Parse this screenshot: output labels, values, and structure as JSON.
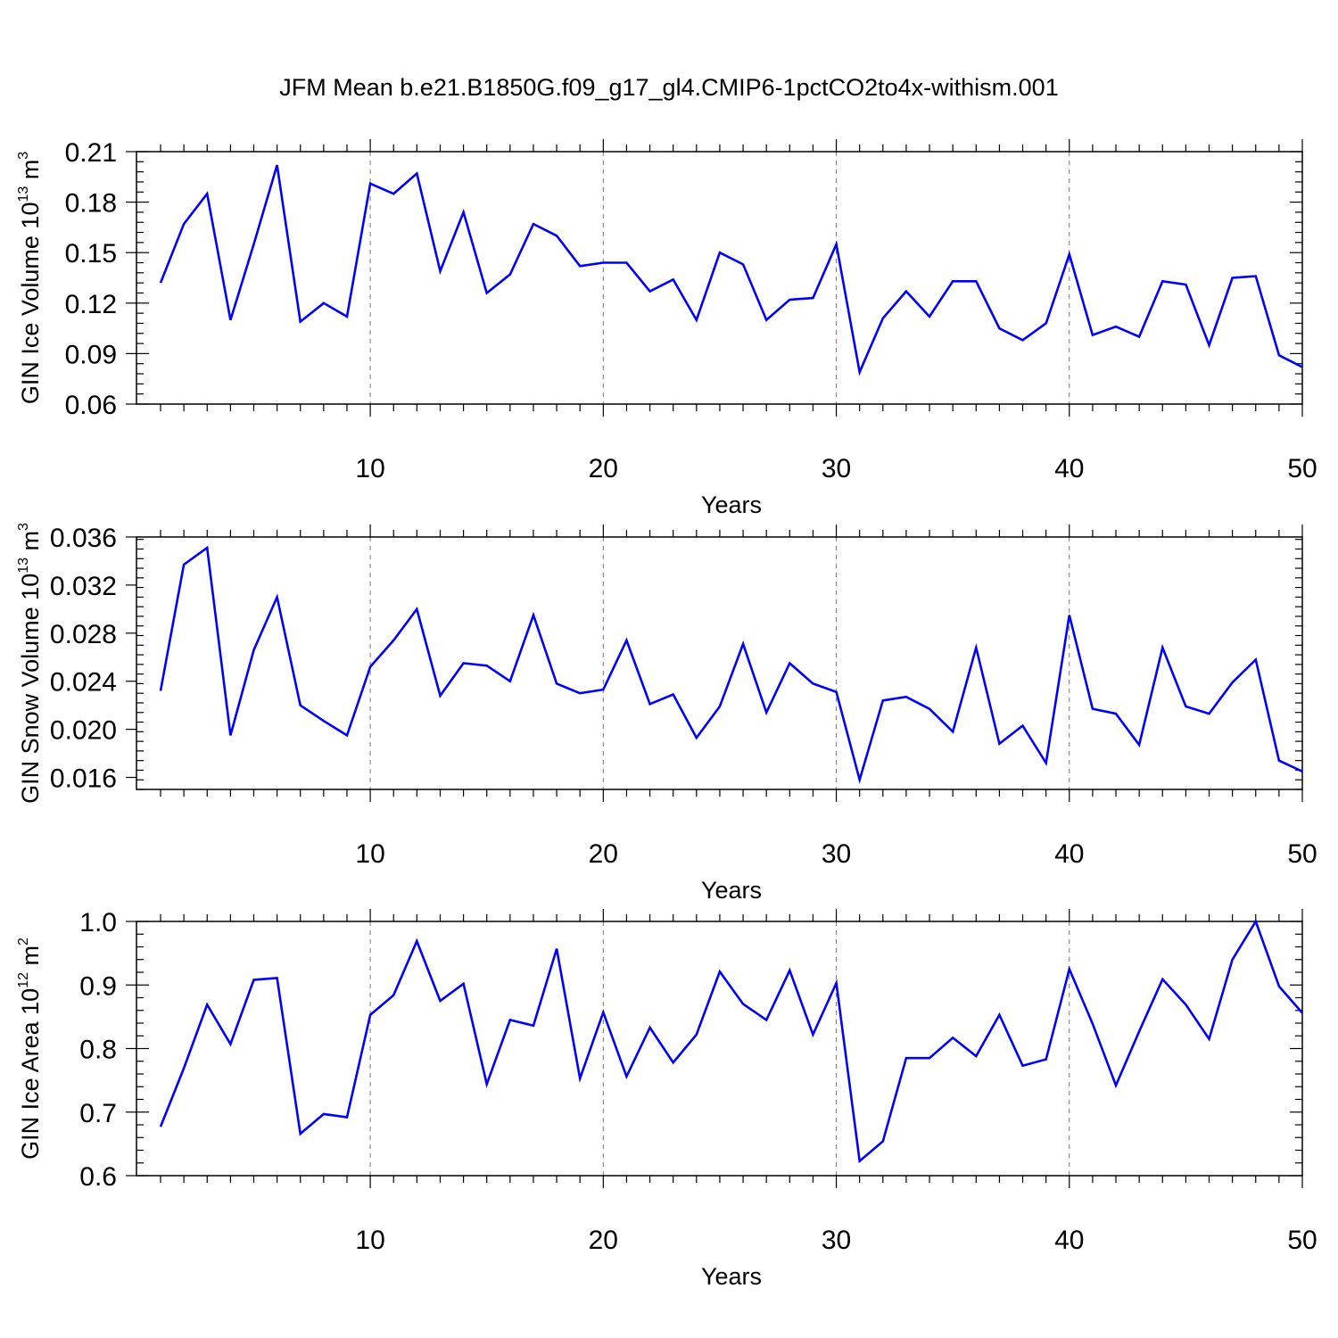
{
  "title": "JFM Mean b.e21.B1850G.f09_g17_gl4.CMIP6-1pctCO2to4x-withism.001",
  "chart_data": [
    {
      "type": "line",
      "title": "JFM Mean b.e21.B1850G.f09_g17_gl4.CMIP6-1pctCO2to4x-withism.001",
      "xlabel": "Years",
      "ylabel": {
        "main": "GIN Ice Volume 10",
        "exp": "13",
        "unit": " m",
        "unit_exp": "3"
      },
      "xlim": [
        1,
        50
      ],
      "ylim": [
        0.06,
        0.21
      ],
      "xticks": [
        10,
        20,
        30,
        40,
        50
      ],
      "yticks": [
        "0.06",
        "0.09",
        "0.12",
        "0.15",
        "0.18",
        "0.21"
      ],
      "grid": "dashed vertical at x-ticks",
      "line_color": "#0000ff",
      "x": [
        1,
        2,
        3,
        4,
        5,
        6,
        7,
        8,
        9,
        10,
        11,
        12,
        13,
        14,
        15,
        16,
        17,
        18,
        19,
        20,
        21,
        22,
        23,
        24,
        25,
        26,
        27,
        28,
        29,
        30,
        31,
        32,
        33,
        34,
        35,
        36,
        37,
        38,
        39,
        40,
        41,
        42,
        43,
        44,
        45,
        46,
        47,
        48,
        49,
        50
      ],
      "values": [
        0.132,
        0.167,
        0.185,
        0.11,
        0.155,
        0.202,
        0.109,
        0.12,
        0.112,
        0.191,
        0.185,
        0.197,
        0.139,
        0.174,
        0.126,
        0.137,
        0.167,
        0.16,
        0.142,
        0.144,
        0.144,
        0.127,
        0.134,
        0.11,
        0.15,
        0.143,
        0.11,
        0.122,
        0.123,
        0.155,
        0.079,
        0.111,
        0.127,
        0.112,
        0.133,
        0.133,
        0.105,
        0.098,
        0.108,
        0.149,
        0.101,
        0.106,
        0.1,
        0.133,
        0.131,
        0.095,
        0.135,
        0.136,
        0.089,
        0.082
      ]
    },
    {
      "type": "line",
      "xlabel": "Years",
      "ylabel": {
        "main": "GIN Snow Volume 10",
        "exp": "13",
        "unit": " m",
        "unit_exp": "3"
      },
      "xlim": [
        1,
        50
      ],
      "ylim": [
        0.015,
        0.036
      ],
      "xticks": [
        10,
        20,
        30,
        40,
        50
      ],
      "yticks": [
        "0.016",
        "0.020",
        "0.024",
        "0.028",
        "0.032",
        "0.036"
      ],
      "grid": "dashed vertical at x-ticks",
      "line_color": "#0000ff",
      "x": [
        1,
        2,
        3,
        4,
        5,
        6,
        7,
        8,
        9,
        10,
        11,
        12,
        13,
        14,
        15,
        16,
        17,
        18,
        19,
        20,
        21,
        22,
        23,
        24,
        25,
        26,
        27,
        28,
        29,
        30,
        31,
        32,
        33,
        34,
        35,
        36,
        37,
        38,
        39,
        40,
        41,
        42,
        43,
        44,
        45,
        46,
        47,
        48,
        49,
        50
      ],
      "values": [
        0.0232,
        0.0337,
        0.0351,
        0.0195,
        0.0266,
        0.031,
        0.022,
        0.0207,
        0.0195,
        0.0252,
        0.0274,
        0.03,
        0.0228,
        0.0255,
        0.0253,
        0.024,
        0.0295,
        0.0238,
        0.023,
        0.0233,
        0.0274,
        0.0221,
        0.0229,
        0.0193,
        0.0219,
        0.0271,
        0.0214,
        0.0255,
        0.0238,
        0.0231,
        0.0158,
        0.0224,
        0.0227,
        0.0217,
        0.0198,
        0.0268,
        0.0188,
        0.0203,
        0.0172,
        0.0295,
        0.0217,
        0.0213,
        0.0187,
        0.0268,
        0.0219,
        0.0213,
        0.0239,
        0.0258,
        0.0174,
        0.0165
      ]
    },
    {
      "type": "line",
      "xlabel": "Years",
      "ylabel": {
        "main": "GIN Ice Area 10",
        "exp": "12",
        "unit": " m",
        "unit_exp": "2"
      },
      "xlim": [
        1,
        50
      ],
      "ylim": [
        0.6,
        1.0
      ],
      "xticks": [
        10,
        20,
        30,
        40,
        50
      ],
      "yticks": [
        "0.6",
        "0.7",
        "0.8",
        "0.9",
        "1.0"
      ],
      "grid": "dashed vertical at x-ticks",
      "line_color": "#0000ff",
      "x": [
        1,
        2,
        3,
        4,
        5,
        6,
        7,
        8,
        9,
        10,
        11,
        12,
        13,
        14,
        15,
        16,
        17,
        18,
        19,
        20,
        21,
        22,
        23,
        24,
        25,
        26,
        27,
        28,
        29,
        30,
        31,
        32,
        33,
        34,
        35,
        36,
        37,
        38,
        39,
        40,
        41,
        42,
        43,
        44,
        45,
        46,
        47,
        48,
        49,
        50
      ],
      "values": [
        0.677,
        0.769,
        0.869,
        0.807,
        0.908,
        0.911,
        0.666,
        0.697,
        0.692,
        0.853,
        0.884,
        0.969,
        0.875,
        0.902,
        0.744,
        0.845,
        0.836,
        0.957,
        0.753,
        0.857,
        0.756,
        0.833,
        0.778,
        0.822,
        0.921,
        0.87,
        0.845,
        0.923,
        0.822,
        0.903,
        0.623,
        0.654,
        0.785,
        0.785,
        0.817,
        0.788,
        0.853,
        0.773,
        0.783,
        0.925,
        0.839,
        0.742,
        0.827,
        0.909,
        0.869,
        0.815,
        0.94,
        1.0,
        0.898,
        0.856
      ]
    }
  ]
}
